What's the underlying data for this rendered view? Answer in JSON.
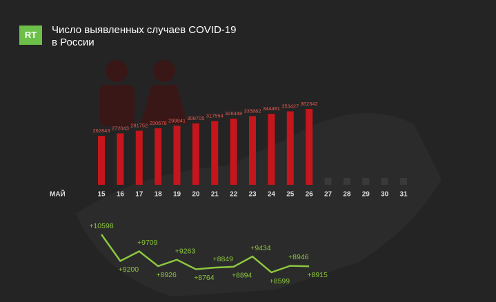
{
  "logo": "RT",
  "chart_data": [
    {
      "type": "bar",
      "title": [
        "Число выявленных случаев COVID-19",
        "в России"
      ],
      "x_label": "МАЙ",
      "categories": [
        "15",
        "16",
        "17",
        "18",
        "19",
        "20",
        "21",
        "22",
        "23",
        "24",
        "25",
        "26",
        "27",
        "28",
        "29",
        "30",
        "31"
      ],
      "values": [
        262843,
        272043,
        281752,
        290678,
        299941,
        308705,
        317554,
        326448,
        335882,
        344481,
        353427,
        362342,
        null,
        null,
        null,
        null,
        null
      ],
      "color": "#c4161c"
    },
    {
      "type": "line",
      "categories": [
        "15",
        "16",
        "17",
        "18",
        "19",
        "20",
        "21",
        "22",
        "23",
        "24",
        "25",
        "26"
      ],
      "values": [
        10598,
        9200,
        9709,
        8926,
        9263,
        8764,
        8849,
        8894,
        9434,
        8599,
        8946,
        8915
      ],
      "value_labels": [
        "+10598",
        "+9200",
        "+9709",
        "+8926",
        "+9263",
        "+8764",
        "+8849",
        "+8894",
        "+9434",
        "+8599",
        "+8946",
        "+8915"
      ],
      "color": "#8dc63f"
    }
  ]
}
